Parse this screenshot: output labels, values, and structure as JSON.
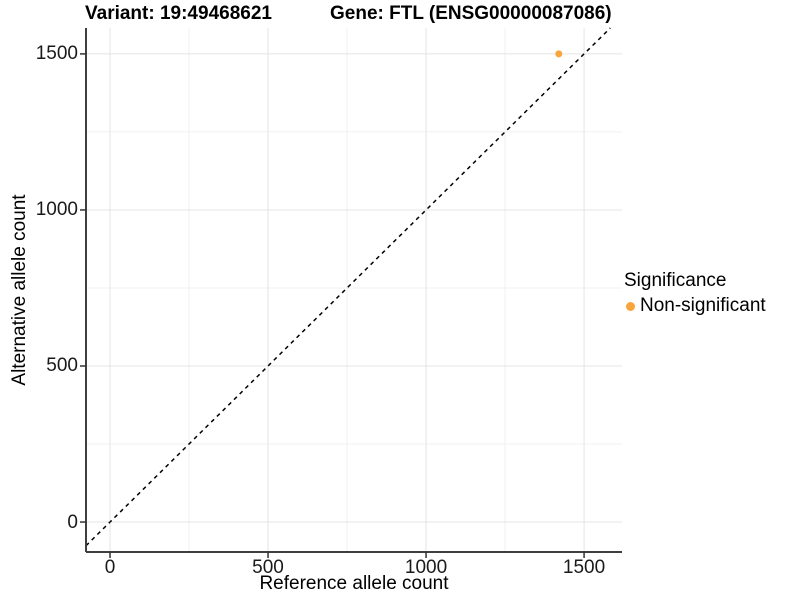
{
  "chart_data": {
    "type": "scatter",
    "title_left": "Variant: 19:49468621",
    "title_right": "Gene: FTL (ENSG00000087086)",
    "xlabel": "Reference allele count",
    "ylabel": "Alternative allele count",
    "x_ticks": [
      0,
      500,
      1000,
      1500
    ],
    "y_ticks": [
      0,
      500,
      1000,
      1500
    ],
    "x_minor_ticks": [
      250,
      750,
      1250
    ],
    "y_minor_ticks": [
      250,
      750,
      1250
    ],
    "xlim": [
      -76,
      1620
    ],
    "ylim": [
      -96,
      1583
    ],
    "grid": "major+minor",
    "legend_position": "right",
    "reference_line": {
      "kind": "identity y=x",
      "style": "dashed",
      "color": "#000000"
    },
    "series": [
      {
        "name": "Non-significant",
        "color": "#F9A43C",
        "marker": "circle",
        "points": [
          {
            "x": 1420,
            "y": 1500
          }
        ]
      }
    ],
    "legend": {
      "title": "Significance",
      "entries": [
        {
          "label": "Non-significant",
          "color": "#F9A43C"
        }
      ]
    }
  },
  "style": {
    "nonsignificant_color": "#F9A43C",
    "major_grid_color": "#E4E4E4",
    "minor_grid_color": "#F1F1F1",
    "axis_line_color": "#3F3F3F",
    "tick_color": "#333333"
  }
}
